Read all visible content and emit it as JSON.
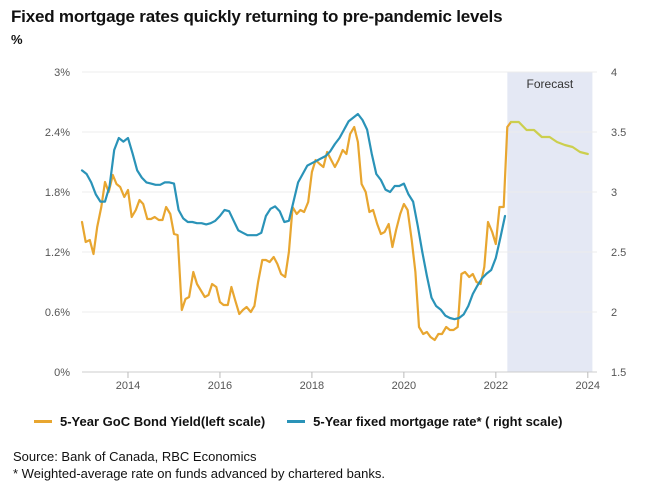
{
  "title": "Fixed mortgage rates quickly returning to pre-pandemic levels",
  "unit_label": "%",
  "legend": [
    {
      "label": "5-Year GoC Bond Yield(left scale)",
      "color": "#e8a630"
    },
    {
      "label": "5-Year fixed mortgage rate* ( right scale)",
      "color": "#2a93b8"
    }
  ],
  "source": "Source: Bank of Canada, RBC Economics",
  "footnote": " * Weighted-average rate on funds advanced by chartered banks.",
  "chart_data": {
    "type": "line",
    "title": "Fixed mortgage rates quickly returning to pre-pandemic levels",
    "xlim": [
      2013.0,
      2024.2
    ],
    "x_ticks": [
      2014,
      2016,
      2018,
      2020,
      2022,
      2024
    ],
    "y_left": {
      "lim": [
        0,
        3
      ],
      "ticks": [
        0,
        0.6,
        1.2,
        1.8,
        2.4,
        3
      ],
      "tick_labels": [
        "0%",
        "0.6%",
        "1.2%",
        "1.8%",
        "2.4%",
        "3%"
      ]
    },
    "y_right": {
      "lim": [
        1.5,
        4
      ],
      "ticks": [
        1.5,
        2,
        2.5,
        3,
        3.5,
        4
      ],
      "tick_labels": [
        "1.5",
        "2",
        "2.5",
        "3",
        "3.5",
        "4"
      ]
    },
    "forecast_region": {
      "label": "Forecast",
      "start": 2022.25,
      "end": 2024.1
    },
    "series": [
      {
        "name": "5-Year GoC Bond Yield(left scale)",
        "axis": "left",
        "color": "#e8a630",
        "x": [
          2013.0,
          2013.08,
          2013.17,
          2013.25,
          2013.33,
          2013.42,
          2013.5,
          2013.58,
          2013.67,
          2013.75,
          2013.83,
          2013.92,
          2014.0,
          2014.08,
          2014.17,
          2014.25,
          2014.33,
          2014.42,
          2014.5,
          2014.58,
          2014.67,
          2014.75,
          2014.83,
          2014.92,
          2015.0,
          2015.08,
          2015.17,
          2015.25,
          2015.33,
          2015.42,
          2015.5,
          2015.58,
          2015.67,
          2015.75,
          2015.83,
          2015.92,
          2016.0,
          2016.08,
          2016.17,
          2016.25,
          2016.33,
          2016.42,
          2016.5,
          2016.58,
          2016.67,
          2016.75,
          2016.83,
          2016.92,
          2017.0,
          2017.08,
          2017.17,
          2017.25,
          2017.33,
          2017.42,
          2017.5,
          2017.58,
          2017.67,
          2017.75,
          2017.83,
          2017.92,
          2018.0,
          2018.08,
          2018.17,
          2018.25,
          2018.33,
          2018.42,
          2018.5,
          2018.58,
          2018.67,
          2018.75,
          2018.83,
          2018.92,
          2019.0,
          2019.08,
          2019.17,
          2019.25,
          2019.33,
          2019.42,
          2019.5,
          2019.58,
          2019.67,
          2019.75,
          2019.83,
          2019.92,
          2020.0,
          2020.08,
          2020.17,
          2020.25,
          2020.33,
          2020.42,
          2020.5,
          2020.58,
          2020.67,
          2020.75,
          2020.83,
          2020.92,
          2021.0,
          2021.08,
          2021.17,
          2021.25,
          2021.33,
          2021.42,
          2021.5,
          2021.58,
          2021.67,
          2021.75,
          2021.83,
          2021.92,
          2022.0,
          2022.08,
          2022.17,
          2022.25,
          2022.33
        ],
        "y": [
          1.5,
          1.3,
          1.32,
          1.18,
          1.45,
          1.65,
          1.9,
          1.8,
          1.97,
          1.88,
          1.85,
          1.75,
          1.82,
          1.55,
          1.62,
          1.72,
          1.68,
          1.53,
          1.53,
          1.55,
          1.52,
          1.52,
          1.65,
          1.58,
          1.38,
          1.37,
          0.62,
          0.73,
          0.75,
          1.0,
          0.88,
          0.82,
          0.75,
          0.77,
          0.88,
          0.85,
          0.7,
          0.67,
          0.67,
          0.85,
          0.72,
          0.58,
          0.62,
          0.65,
          0.6,
          0.66,
          0.9,
          1.12,
          1.12,
          1.1,
          1.15,
          1.08,
          0.98,
          0.95,
          1.2,
          1.65,
          1.58,
          1.62,
          1.6,
          1.7,
          2.0,
          2.12,
          2.08,
          2.05,
          2.2,
          2.12,
          2.05,
          2.12,
          2.22,
          2.18,
          2.38,
          2.45,
          2.3,
          1.88,
          1.8,
          1.6,
          1.62,
          1.48,
          1.38,
          1.4,
          1.48,
          1.25,
          1.42,
          1.58,
          1.68,
          1.62,
          1.32,
          1.0,
          0.45,
          0.38,
          0.4,
          0.35,
          0.32,
          0.38,
          0.38,
          0.45,
          0.42,
          0.42,
          0.45,
          0.98,
          1.0,
          0.95,
          0.98,
          0.9,
          0.88,
          1.05,
          1.5,
          1.4,
          1.28,
          1.65,
          1.65,
          2.45,
          2.5
        ]
      },
      {
        "name": "5-Year fixed mortgage rate* ( right scale)",
        "axis": "right",
        "color": "#2a93b8",
        "x": [
          2013.0,
          2013.1,
          2013.2,
          2013.3,
          2013.4,
          2013.5,
          2013.6,
          2013.7,
          2013.8,
          2013.9,
          2014.0,
          2014.1,
          2014.2,
          2014.3,
          2014.4,
          2014.5,
          2014.6,
          2014.7,
          2014.8,
          2014.9,
          2015.0,
          2015.1,
          2015.2,
          2015.3,
          2015.4,
          2015.5,
          2015.6,
          2015.7,
          2015.8,
          2015.9,
          2016.0,
          2016.1,
          2016.2,
          2016.3,
          2016.4,
          2016.5,
          2016.6,
          2016.7,
          2016.8,
          2016.9,
          2017.0,
          2017.1,
          2017.2,
          2017.3,
          2017.4,
          2017.5,
          2017.6,
          2017.7,
          2017.8,
          2017.9,
          2018.0,
          2018.1,
          2018.2,
          2018.3,
          2018.4,
          2018.5,
          2018.6,
          2018.7,
          2018.8,
          2018.9,
          2019.0,
          2019.1,
          2019.2,
          2019.3,
          2019.4,
          2019.5,
          2019.6,
          2019.7,
          2019.8,
          2019.9,
          2020.0,
          2020.1,
          2020.2,
          2020.3,
          2020.4,
          2020.5,
          2020.6,
          2020.7,
          2020.8,
          2020.9,
          2021.0,
          2021.1,
          2021.2,
          2021.3,
          2021.4,
          2021.5,
          2021.6,
          2021.7,
          2021.8,
          2021.9,
          2022.0,
          2022.1,
          2022.2
        ],
        "y": [
          3.18,
          3.15,
          3.08,
          2.98,
          2.92,
          2.92,
          3.05,
          3.35,
          3.45,
          3.42,
          3.45,
          3.32,
          3.18,
          3.12,
          3.08,
          3.07,
          3.06,
          3.06,
          3.08,
          3.08,
          3.07,
          2.85,
          2.78,
          2.75,
          2.75,
          2.74,
          2.74,
          2.73,
          2.74,
          2.76,
          2.8,
          2.85,
          2.84,
          2.76,
          2.68,
          2.66,
          2.64,
          2.64,
          2.64,
          2.66,
          2.8,
          2.86,
          2.88,
          2.84,
          2.75,
          2.76,
          2.92,
          3.08,
          3.15,
          3.22,
          3.24,
          3.26,
          3.28,
          3.3,
          3.34,
          3.4,
          3.45,
          3.52,
          3.59,
          3.62,
          3.65,
          3.6,
          3.52,
          3.32,
          3.15,
          3.1,
          3.02,
          3.0,
          3.05,
          3.05,
          3.07,
          2.98,
          2.92,
          2.72,
          2.5,
          2.3,
          2.12,
          2.05,
          2.02,
          1.97,
          1.95,
          1.94,
          1.95,
          1.98,
          2.05,
          2.15,
          2.22,
          2.28,
          2.32,
          2.35,
          2.45,
          2.62,
          2.8
        ]
      },
      {
        "name": "Forecast",
        "axis": "left",
        "color": "#cccf4e",
        "x": [
          2022.33,
          2022.5,
          2022.67,
          2022.83,
          2023.0,
          2023.17,
          2023.33,
          2023.5,
          2023.67,
          2023.83,
          2024.0
        ],
        "y": [
          2.5,
          2.5,
          2.42,
          2.42,
          2.35,
          2.35,
          2.3,
          2.27,
          2.25,
          2.2,
          2.18
        ]
      }
    ]
  }
}
